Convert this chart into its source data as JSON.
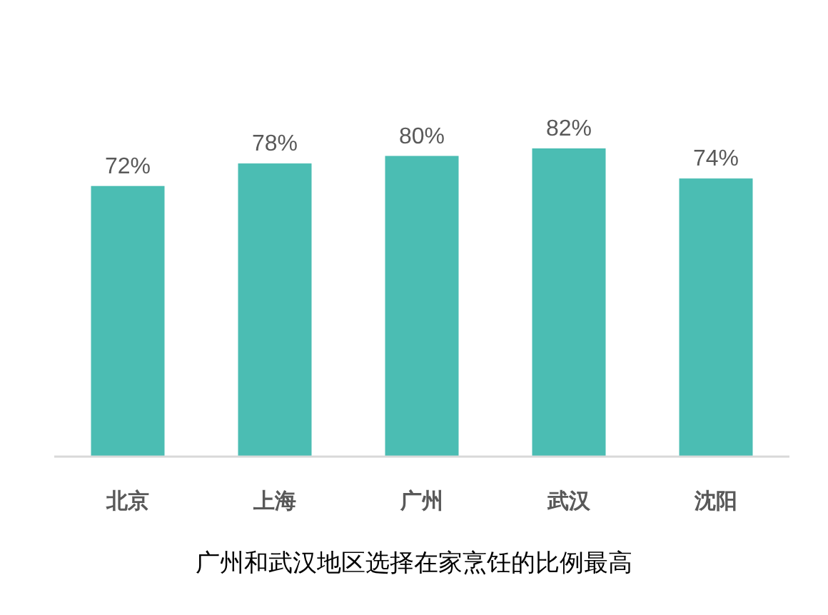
{
  "chart_data": {
    "type": "bar",
    "title": "广州和武汉地区选择在家烹饪的比例最高",
    "categories": [
      "北京",
      "上海",
      "广州",
      "武汉",
      "沈阳"
    ],
    "values": [
      72,
      78,
      80,
      82,
      74
    ],
    "value_labels": [
      "72%",
      "78%",
      "80%",
      "82%",
      "74%"
    ],
    "color": "#4bbdb3"
  }
}
